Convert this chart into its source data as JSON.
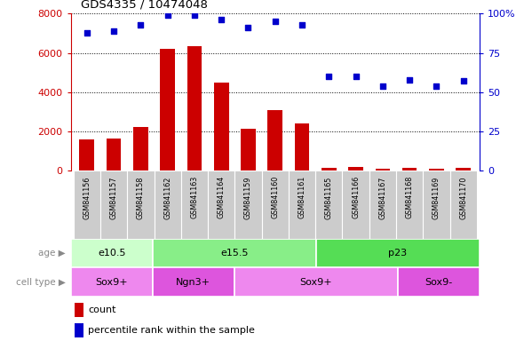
{
  "title": "GDS4335 / 10474048",
  "samples": [
    "GSM841156",
    "GSM841157",
    "GSM841158",
    "GSM841162",
    "GSM841163",
    "GSM841164",
    "GSM841159",
    "GSM841160",
    "GSM841161",
    "GSM841165",
    "GSM841166",
    "GSM841167",
    "GSM841168",
    "GSM841169",
    "GSM841170"
  ],
  "counts": [
    1600,
    1650,
    2200,
    6200,
    6350,
    4500,
    2150,
    3100,
    2400,
    150,
    200,
    100,
    120,
    100,
    130
  ],
  "percentiles": [
    88,
    89,
    93,
    99,
    99,
    96,
    91,
    95,
    93,
    60,
    60,
    54,
    58,
    54,
    57
  ],
  "bar_color": "#cc0000",
  "dot_color": "#0000cc",
  "left_axis_color": "#cc0000",
  "right_axis_color": "#0000cc",
  "ylim_left": [
    0,
    8000
  ],
  "ylim_right": [
    0,
    100
  ],
  "left_yticks": [
    0,
    2000,
    4000,
    6000,
    8000
  ],
  "right_yticks": [
    0,
    25,
    50,
    75,
    100
  ],
  "right_yticklabels": [
    "0",
    "25",
    "50",
    "75",
    "100%"
  ],
  "age_groups": [
    {
      "label": "e10.5",
      "start": 0,
      "end": 3,
      "color": "#ccffcc"
    },
    {
      "label": "e15.5",
      "start": 3,
      "end": 9,
      "color": "#88ee88"
    },
    {
      "label": "p23",
      "start": 9,
      "end": 15,
      "color": "#55dd55"
    }
  ],
  "cell_type_groups": [
    {
      "label": "Sox9+",
      "start": 0,
      "end": 3,
      "color": "#ee88ee"
    },
    {
      "label": "Ngn3+",
      "start": 3,
      "end": 6,
      "color": "#dd55dd"
    },
    {
      "label": "Sox9+",
      "start": 6,
      "end": 12,
      "color": "#ee88ee"
    },
    {
      "label": "Sox9-",
      "start": 12,
      "end": 15,
      "color": "#dd55dd"
    }
  ],
  "legend_count_label": "count",
  "legend_pct_label": "percentile rank within the sample",
  "plot_bg_color": "#ffffff",
  "tick_bg_color": "#cccccc",
  "age_label": "age",
  "cell_type_label": "cell type"
}
